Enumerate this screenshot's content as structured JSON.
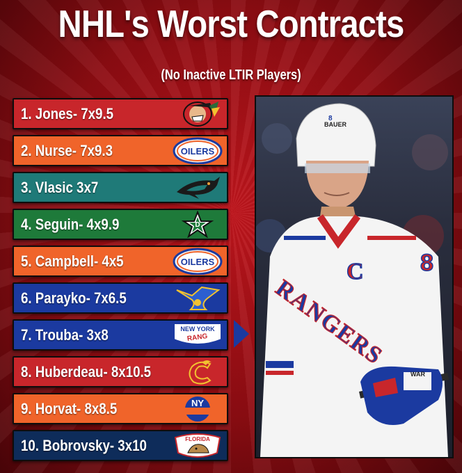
{
  "title": "NHL's Worst Contracts",
  "subtitle": "(No Inactive LTIR Players)",
  "colors": {
    "blackhawks": "#c8262b",
    "oilers": "#f0642a",
    "sharks": "#1f7a78",
    "stars": "#1e7a3a",
    "blues": "#1b3aa0",
    "rangers": "#1b3aa0",
    "flames": "#c8262b",
    "islanders": "#f0642a",
    "panthers": "#0e2c5a"
  },
  "players": [
    {
      "label": "1. Jones- 7x9.5",
      "team_logo": "blackhawks-logo"
    },
    {
      "label": "2. Nurse- 7x9.3",
      "team_logo": "oilers-logo",
      "logo_text": "OILERS"
    },
    {
      "label": "3. Vlasic 3x7",
      "team_logo": "sharks-logo"
    },
    {
      "label": "4. Seguin- 4x9.9",
      "team_logo": "stars-logo"
    },
    {
      "label": "5. Campbell- 4x5",
      "team_logo": "oilers-logo",
      "logo_text": "OILERS"
    },
    {
      "label": "6. Parayko- 7x6.5",
      "team_logo": "blues-logo"
    },
    {
      "label": "7. Trouba- 3x8",
      "team_logo": "rangers-logo",
      "logo_text": "NEW YORK",
      "logo_text2": "RANG"
    },
    {
      "label": "8. Huberdeau- 8x10.5",
      "team_logo": "flames-logo"
    },
    {
      "label": "9. Horvat- 8x8.5",
      "team_logo": "islanders-logo",
      "logo_text": "NY"
    },
    {
      "label": "10. Bobrovsky- 3x10",
      "team_logo": "panthers-logo",
      "logo_text": "FLORIDA"
    }
  ],
  "photo": {
    "jersey_wordmark": "RANGERS",
    "captain_letter": "C",
    "number": "8",
    "helmet_brand": "BAUER",
    "glove_brand": "WAR"
  }
}
